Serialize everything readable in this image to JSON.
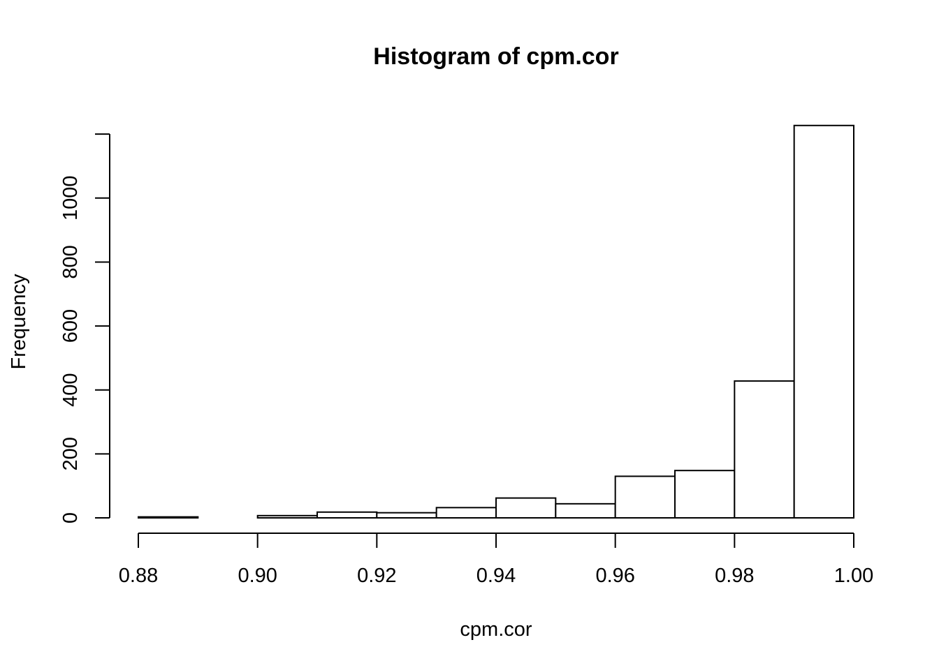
{
  "chart_data": {
    "type": "bar",
    "title": "Histogram of cpm.cor",
    "xlabel": "cpm.cor",
    "ylabel": "Frequency",
    "bin_edges": [
      0.88,
      0.89,
      0.9,
      0.91,
      0.92,
      0.93,
      0.94,
      0.95,
      0.96,
      0.97,
      0.98,
      0.99,
      1.0
    ],
    "values": [
      3,
      0,
      7,
      18,
      16,
      32,
      62,
      44,
      130,
      148,
      428,
      1227
    ],
    "xlim": [
      0.88,
      1.0
    ],
    "ylim": [
      0,
      1227
    ],
    "x_ticks": [
      0.88,
      0.9,
      0.92,
      0.94,
      0.96,
      0.98,
      1.0
    ],
    "x_tick_labels": [
      "0.88",
      "0.90",
      "0.92",
      "0.94",
      "0.96",
      "0.98",
      "1.00"
    ],
    "y_ticks": [
      0,
      200,
      400,
      600,
      800,
      1000,
      1200
    ],
    "y_tick_labels": [
      "0",
      "200",
      "400",
      "600",
      "800",
      "1000",
      ""
    ],
    "grid": false,
    "legend": "none",
    "colors": {
      "bar_fill": "#ffffff",
      "bar_stroke": "#000000"
    }
  }
}
